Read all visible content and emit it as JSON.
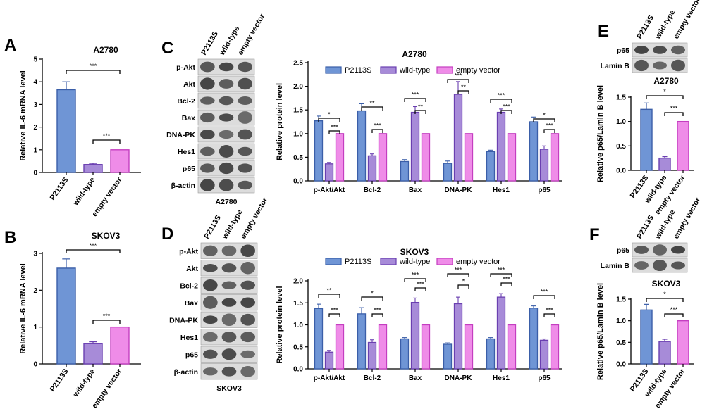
{
  "panels": {
    "A": "A",
    "B": "B",
    "C": "C",
    "D": "D",
    "E": "E",
    "F": "F"
  },
  "colors": {
    "blue": "#6f95d5",
    "purple": "#a78bd8",
    "pink": "#ef8ce8",
    "blue_edge": "#3a5ea8",
    "purple_edge": "#6a3fb0",
    "pink_edge": "#c43ec0"
  },
  "chart_data": [
    {
      "id": "A",
      "type": "bar",
      "title": "A2780",
      "ylabel": "Relative IL-6 mRNA level",
      "categories": [
        "P2113S",
        "wild-type",
        "empty vector"
      ],
      "values": [
        3.65,
        0.35,
        1.0
      ],
      "errors": [
        0.35,
        0.05,
        0
      ],
      "ylim": [
        0,
        5
      ],
      "yticks": [
        "0",
        "1",
        "2",
        "3",
        "4",
        "5"
      ],
      "sig": [
        {
          "a": 0,
          "b": 2,
          "label": "***"
        },
        {
          "a": 1,
          "b": 2,
          "label": "***"
        }
      ]
    },
    {
      "id": "B",
      "type": "bar",
      "title": "SKOV3",
      "ylabel": "Relative IL-6 mRNA level",
      "categories": [
        "P2113S",
        "wild-type",
        "empty vector"
      ],
      "values": [
        2.6,
        0.55,
        1.0
      ],
      "errors": [
        0.25,
        0.05,
        0
      ],
      "ylim": [
        0,
        3
      ],
      "yticks": [
        "0",
        "1",
        "2",
        "3"
      ],
      "sig": [
        {
          "a": 0,
          "b": 2,
          "label": "***"
        },
        {
          "a": 1,
          "b": 2,
          "label": "***"
        }
      ]
    },
    {
      "id": "C",
      "type": "bar",
      "title": "A2780",
      "ylabel": "Relative protein level",
      "categories": [
        "p-Akt/Akt",
        "Bcl-2",
        "Bax",
        "DNA-PK",
        "Hes1",
        "p65"
      ],
      "series": [
        {
          "name": "P2113S",
          "values": [
            1.27,
            1.48,
            0.41,
            0.37,
            0.62,
            1.25
          ],
          "errors": [
            0.1,
            0.15,
            0.04,
            0.05,
            0.03,
            0.1
          ]
        },
        {
          "name": "wild-type",
          "values": [
            0.36,
            0.53,
            1.45,
            1.83,
            1.45,
            0.67
          ],
          "errors": [
            0.03,
            0.04,
            0.12,
            0.27,
            0.07,
            0.07
          ]
        },
        {
          "name": "empty vector",
          "values": [
            1.0,
            1.0,
            1.0,
            1.0,
            1.0,
            1.0
          ],
          "errors": [
            0,
            0,
            0,
            0,
            0,
            0
          ]
        }
      ],
      "ylim": [
        0,
        2.5
      ],
      "yticks": [
        "0.0",
        "0.5",
        "1.0",
        "1.5",
        "2.0",
        "2.5"
      ],
      "sig": [
        {
          "g": 0,
          "a": 0,
          "b": 2,
          "label": "*"
        },
        {
          "g": 0,
          "a": 1,
          "b": 2,
          "label": "***"
        },
        {
          "g": 1,
          "a": 0,
          "b": 2,
          "label": "**"
        },
        {
          "g": 1,
          "a": 1,
          "b": 2,
          "label": "***"
        },
        {
          "g": 2,
          "a": 0,
          "b": 2,
          "label": "***"
        },
        {
          "g": 2,
          "a": 1,
          "b": 2,
          "label": "**"
        },
        {
          "g": 3,
          "a": 0,
          "b": 2,
          "label": "***"
        },
        {
          "g": 3,
          "a": 1,
          "b": 2,
          "label": "**"
        },
        {
          "g": 4,
          "a": 0,
          "b": 2,
          "label": "***"
        },
        {
          "g": 4,
          "a": 1,
          "b": 2,
          "label": "***"
        },
        {
          "g": 5,
          "a": 0,
          "b": 2,
          "label": "*"
        },
        {
          "g": 5,
          "a": 1,
          "b": 2,
          "label": "***"
        }
      ]
    },
    {
      "id": "D",
      "type": "bar",
      "title": "SKOV3",
      "ylabel": "Relative protein level",
      "categories": [
        "p-Akt/Akt",
        "Bcl-2",
        "Bax",
        "DNA-PK",
        "Hes1",
        "p65"
      ],
      "series": [
        {
          "name": "P2113S",
          "values": [
            1.37,
            1.25,
            0.68,
            0.56,
            0.68,
            1.38
          ],
          "errors": [
            0.1,
            0.14,
            0.03,
            0.03,
            0.03,
            0.05
          ]
        },
        {
          "name": "wild-type",
          "values": [
            0.38,
            0.6,
            1.51,
            1.48,
            1.63,
            0.65
          ],
          "errors": [
            0.04,
            0.06,
            0.1,
            0.15,
            0.08,
            0.03
          ]
        },
        {
          "name": "empty vector",
          "values": [
            1.0,
            1.0,
            1.0,
            1.0,
            1.0,
            1.0
          ],
          "errors": [
            0,
            0,
            0,
            0,
            0,
            0
          ]
        }
      ],
      "ylim": [
        0,
        2.0
      ],
      "yticks": [
        "0.0",
        "0.5",
        "1.0",
        "1.5",
        "2.0"
      ],
      "sig": [
        {
          "g": 0,
          "a": 0,
          "b": 2,
          "label": "**"
        },
        {
          "g": 0,
          "a": 1,
          "b": 2,
          "label": "***"
        },
        {
          "g": 1,
          "a": 0,
          "b": 2,
          "label": "*"
        },
        {
          "g": 1,
          "a": 1,
          "b": 2,
          "label": "***"
        },
        {
          "g": 2,
          "a": 0,
          "b": 2,
          "label": "***"
        },
        {
          "g": 2,
          "a": 1,
          "b": 2,
          "label": "***"
        },
        {
          "g": 3,
          "a": 0,
          "b": 2,
          "label": "***"
        },
        {
          "g": 3,
          "a": 1,
          "b": 2,
          "label": "*"
        },
        {
          "g": 4,
          "a": 0,
          "b": 2,
          "label": "***"
        },
        {
          "g": 4,
          "a": 1,
          "b": 2,
          "label": "***"
        },
        {
          "g": 5,
          "a": 0,
          "b": 2,
          "label": "***"
        },
        {
          "g": 5,
          "a": 1,
          "b": 2,
          "label": "***"
        }
      ]
    },
    {
      "id": "E",
      "type": "bar",
      "title": "A2780",
      "ylabel": "Relative p65/Lamin B level",
      "categories": [
        "P2113S",
        "wild-type",
        "empty vector"
      ],
      "values": [
        1.25,
        0.25,
        1.0
      ],
      "errors": [
        0.13,
        0.03,
        0
      ],
      "ylim": [
        0,
        1.5
      ],
      "yticks": [
        "0.0",
        "0.5",
        "1.0",
        "1.5"
      ],
      "sig": [
        {
          "a": 0,
          "b": 2,
          "label": "*"
        },
        {
          "a": 1,
          "b": 2,
          "label": "***"
        }
      ]
    },
    {
      "id": "F",
      "type": "bar",
      "title": "SKOV3",
      "ylabel": "Relative p65/Lamin B level",
      "categories": [
        "P2113S",
        "wild-type",
        "empty vector"
      ],
      "values": [
        1.25,
        0.52,
        1.0
      ],
      "errors": [
        0.13,
        0.05,
        0
      ],
      "ylim": [
        0,
        1.5
      ],
      "yticks": [
        "0.0",
        "0.5",
        "1.0",
        "1.5"
      ],
      "sig": [
        {
          "a": 0,
          "b": 2,
          "label": "*"
        },
        {
          "a": 1,
          "b": 2,
          "label": "***"
        }
      ]
    }
  ],
  "blots": {
    "C": {
      "columns": [
        "P2113S",
        "wild-type",
        "empty vector"
      ],
      "rows": [
        "p-Akt",
        "Akt",
        "Bcl-2",
        "Bax",
        "DNA-PK",
        "Hes1",
        "p65",
        "β-actin"
      ],
      "cell_line": "A2780"
    },
    "D": {
      "columns": [
        "P2113S",
        "wild-type",
        "empty vector"
      ],
      "rows": [
        "p-Akt",
        "Akt",
        "Bcl-2",
        "Bax",
        "DNA-PK",
        "Hes1",
        "p65",
        "β-actin"
      ],
      "cell_line": "SKOV3"
    },
    "E": {
      "columns": [
        "P2113S",
        "wild-type",
        "empty vector"
      ],
      "rows": [
        "p65",
        "Lamin B"
      ]
    },
    "F": {
      "columns": [
        "P2113S",
        "wild-type",
        "empty vector"
      ],
      "rows": [
        "p65",
        "Lamin B"
      ]
    }
  }
}
